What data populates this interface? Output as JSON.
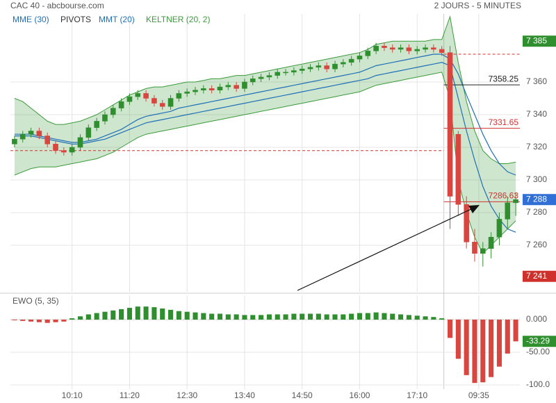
{
  "chart_data": {
    "type": "candlestick",
    "title": "CAC 40 - abcbourse.com",
    "subtitle": "2 JOURS - 5 MINUTES",
    "legend": [
      {
        "name": "MME (30)",
        "color": "#1e6fb8"
      },
      {
        "name": "PIVOTS",
        "color": "#333333"
      },
      {
        "name": "MMT (20)",
        "color": "#1e6fb8"
      },
      {
        "name": "KELTNER (20, 2)",
        "color": "#3a9a3a"
      }
    ],
    "up_color": "#2f8f2f",
    "down_color": "#d9453f",
    "xticks": [
      {
        "value": 7,
        "label": "10:10"
      },
      {
        "value": 14,
        "label": "11:20"
      },
      {
        "value": 21,
        "label": "12:30"
      },
      {
        "value": 28,
        "label": "13:40"
      },
      {
        "value": 35,
        "label": "14:50"
      },
      {
        "value": 42,
        "label": "16:00"
      },
      {
        "value": 49,
        "label": "17:10"
      },
      {
        "value": 56.5,
        "label": "09:35"
      }
    ],
    "ylim": [
      7231.5,
      7401.7
    ],
    "yticks": [
      {
        "value": 7260,
        "label": "7 260"
      },
      {
        "value": 7280,
        "label": "7 280"
      },
      {
        "value": 7300,
        "label": "7 300"
      },
      {
        "value": 7320,
        "label": "7 320"
      },
      {
        "value": 7340,
        "label": "7 340"
      },
      {
        "value": 7360,
        "label": "7 360"
      }
    ],
    "grid": true,
    "open": [
      7322,
      7325,
      7328,
      7330,
      7327,
      7322,
      7318,
      7317,
      7320,
      7326,
      7332,
      7336,
      7340,
      7344,
      7348,
      7351,
      7353,
      7350,
      7347,
      7345,
      7350,
      7353,
      7354,
      7355,
      7356,
      7355,
      7357,
      7358,
      7356,
      7360,
      7362,
      7363,
      7364,
      7366,
      7366,
      7367,
      7368,
      7369,
      7370,
      7368,
      7371,
      7372,
      7374,
      7376,
      7379,
      7382,
      7381,
      7380,
      7381,
      7379,
      7380,
      7381,
      7380,
      7378,
      7328,
      7285,
      7262,
      7255,
      7258,
      7265,
      7276,
      7286
    ],
    "high": [
      7327,
      7330,
      7332,
      7332,
      7329,
      7324,
      7320,
      7322,
      7328,
      7334,
      7338,
      7342,
      7346,
      7350,
      7353,
      7355,
      7355,
      7352,
      7349,
      7352,
      7355,
      7356,
      7357,
      7358,
      7358,
      7359,
      7360,
      7360,
      7362,
      7364,
      7365,
      7366,
      7368,
      7368,
      7369,
      7370,
      7371,
      7372,
      7372,
      7373,
      7374,
      7376,
      7378,
      7381,
      7384,
      7384,
      7383,
      7383,
      7383,
      7382,
      7383,
      7383,
      7382,
      7382,
      7330,
      7290,
      7270,
      7262,
      7268,
      7280,
      7290,
      7292
    ],
    "low": [
      7320,
      7323,
      7326,
      7325,
      7320,
      7316,
      7315,
      7315,
      7318,
      7324,
      7330,
      7334,
      7338,
      7342,
      7346,
      7349,
      7348,
      7345,
      7343,
      7343,
      7348,
      7351,
      7352,
      7353,
      7353,
      7353,
      7355,
      7354,
      7354,
      7358,
      7360,
      7361,
      7362,
      7364,
      7364,
      7365,
      7366,
      7367,
      7366,
      7366,
      7369,
      7370,
      7372,
      7374,
      7377,
      7379,
      7378,
      7378,
      7377,
      7377,
      7378,
      7378,
      7376,
      7270,
      7278,
      7258,
      7250,
      7247,
      7252,
      7260,
      7270,
      7278
    ],
    "close": [
      7325,
      7328,
      7330,
      7327,
      7322,
      7318,
      7317,
      7320,
      7326,
      7332,
      7336,
      7340,
      7344,
      7348,
      7351,
      7353,
      7350,
      7347,
      7345,
      7350,
      7353,
      7354,
      7355,
      7356,
      7355,
      7357,
      7358,
      7356,
      7360,
      7362,
      7363,
      7364,
      7366,
      7366,
      7367,
      7368,
      7369,
      7370,
      7368,
      7371,
      7372,
      7374,
      7376,
      7379,
      7382,
      7381,
      7380,
      7381,
      7379,
      7380,
      7381,
      7380,
      7378,
      7290,
      7285,
      7262,
      7255,
      7258,
      7265,
      7276,
      7286,
      7288
    ],
    "keltner_upper": [
      7350,
      7348,
      7344,
      7340,
      7336,
      7334,
      7334,
      7335,
      7336,
      7338,
      7340,
      7343,
      7346,
      7349,
      7352,
      7354,
      7356,
      7357,
      7357,
      7358,
      7359,
      7360,
      7360,
      7361,
      7362,
      7362,
      7363,
      7364,
      7364,
      7365,
      7366,
      7367,
      7368,
      7369,
      7370,
      7371,
      7372,
      7373,
      7374,
      7375,
      7376,
      7377,
      7378,
      7380,
      7383,
      7384,
      7385,
      7385,
      7385,
      7385,
      7385,
      7386,
      7386,
      7400,
      7372,
      7348,
      7330,
      7318,
      7313,
      7310,
      7310,
      7311
    ],
    "keltner_lower": [
      7303,
      7305,
      7307,
      7308,
      7308,
      7308,
      7309,
      7310,
      7311,
      7312,
      7313,
      7315,
      7317,
      7320,
      7323,
      7326,
      7328,
      7329,
      7330,
      7331,
      7332,
      7333,
      7334,
      7335,
      7336,
      7337,
      7338,
      7339,
      7340,
      7341,
      7342,
      7343,
      7344,
      7345,
      7346,
      7347,
      7348,
      7349,
      7350,
      7351,
      7352,
      7353,
      7354,
      7356,
      7358,
      7359,
      7360,
      7361,
      7362,
      7363,
      7364,
      7365,
      7366,
      7350,
      7300,
      7280,
      7265,
      7255,
      7260,
      7265,
      7270,
      7275
    ],
    "mme": [
      7327,
      7327,
      7327,
      7326,
      7325,
      7324,
      7323,
      7322,
      7322,
      7323,
      7324,
      7325,
      7327,
      7329,
      7331,
      7333,
      7335,
      7336,
      7337,
      7338,
      7339,
      7340,
      7341,
      7342,
      7343,
      7344,
      7345,
      7346,
      7347,
      7348,
      7349,
      7350,
      7351,
      7352,
      7353,
      7354,
      7355,
      7356,
      7357,
      7358,
      7359,
      7360,
      7361,
      7362,
      7364,
      7365,
      7366,
      7367,
      7368,
      7369,
      7370,
      7371,
      7372,
      7370,
      7350,
      7330,
      7312,
      7296,
      7284,
      7276,
      7270,
      7268
    ],
    "mmt": [
      7328,
      7328,
      7328,
      7327,
      7326,
      7325,
      7324,
      7323,
      7323,
      7324,
      7325,
      7327,
      7329,
      7331,
      7334,
      7337,
      7339,
      7340,
      7341,
      7342,
      7344,
      7345,
      7346,
      7347,
      7348,
      7349,
      7350,
      7351,
      7352,
      7353,
      7354,
      7355,
      7356,
      7357,
      7358,
      7359,
      7360,
      7361,
      7362,
      7363,
      7364,
      7365,
      7366,
      7368,
      7370,
      7371,
      7372,
      7373,
      7374,
      7375,
      7376,
      7377,
      7377,
      7374,
      7365,
      7352,
      7340,
      7328,
      7318,
      7310,
      7305,
      7303
    ],
    "pivots": [
      {
        "value": 7377
      },
      {
        "value": 7318
      }
    ],
    "levels": [
      {
        "value": 7358.25,
        "label": "7358.25",
        "color": "#222222"
      },
      {
        "value": 7331.65,
        "label": "7331.65",
        "color": "#d03030"
      },
      {
        "value": 7286.63,
        "label": "7286.63",
        "color": "#d03030"
      }
    ],
    "price_badges": [
      {
        "value": 7385,
        "label": "7 385",
        "color": "#2f8f2f"
      },
      {
        "value": 7288,
        "label": "7 288",
        "color": "#2f6fd6"
      },
      {
        "value": 7241,
        "label": "7 241",
        "color": "#d0302b"
      }
    ],
    "ewo": {
      "name": "EWO (5, 35)",
      "values": [
        -1,
        -2,
        -3,
        -4,
        -5,
        -4,
        -3,
        2,
        5,
        8,
        10,
        12,
        14,
        16,
        18,
        20,
        20,
        19,
        17,
        15,
        13,
        12,
        11,
        10,
        9,
        9,
        8,
        8,
        7,
        7,
        7,
        8,
        8,
        8,
        9,
        9,
        9,
        9,
        8,
        8,
        8,
        9,
        10,
        10,
        11,
        10,
        9,
        8,
        7,
        6,
        5,
        4,
        2,
        -28,
        -60,
        -85,
        -97,
        -96,
        -88,
        -72,
        -52,
        -33.29
      ],
      "ylim": [
        -106.4,
        37.2
      ],
      "yticks": [
        {
          "value": 0,
          "label": "0.000"
        },
        {
          "value": -50,
          "label": "-50.00"
        },
        {
          "value": -100,
          "label": "-100.0"
        }
      ],
      "badge": {
        "value": -33.29,
        "label": "-33.29",
        "color": "#2f8f2f"
      }
    }
  }
}
